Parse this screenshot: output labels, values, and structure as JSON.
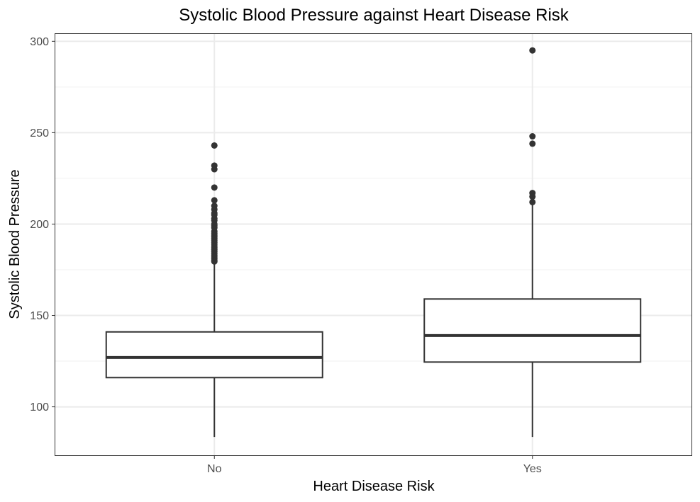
{
  "chart_data": {
    "type": "boxplot",
    "title": "Systolic Blood Pressure against Heart Disease Risk",
    "xlabel": "Heart Disease Risk",
    "ylabel": "Systolic Blood Pressure",
    "ylim": [
      73.5,
      304
    ],
    "y_ticks": [
      100,
      150,
      200,
      250,
      300
    ],
    "y_minor_ticks": [
      125,
      175,
      225,
      275
    ],
    "grid": true,
    "categories": [
      "No",
      "Yes"
    ],
    "boxes": [
      {
        "category": "No",
        "whisker_low": 83.5,
        "q1": 116,
        "median": 127,
        "q3": 141,
        "whisker_high": 178.5,
        "outliers": [
          243,
          232,
          230,
          220,
          213,
          210,
          208,
          206,
          205,
          203,
          202,
          200,
          199,
          198,
          196,
          195,
          194,
          193,
          192,
          191,
          190,
          189,
          188,
          187,
          186,
          185,
          184,
          183,
          182,
          181,
          180,
          179.5
        ]
      },
      {
        "category": "Yes",
        "whisker_low": 83.5,
        "q1": 124.5,
        "median": 139,
        "q3": 159,
        "whisker_high": 210.5,
        "outliers": [
          295,
          248,
          244,
          217,
          215,
          212
        ]
      }
    ],
    "colors": {
      "box_line": "#333333",
      "box_fill": "#ffffff",
      "grid_major": "#ebebeb",
      "grid_minor": "#f2f2f2",
      "panel_border": "#333333",
      "outlier": "#333333"
    }
  }
}
